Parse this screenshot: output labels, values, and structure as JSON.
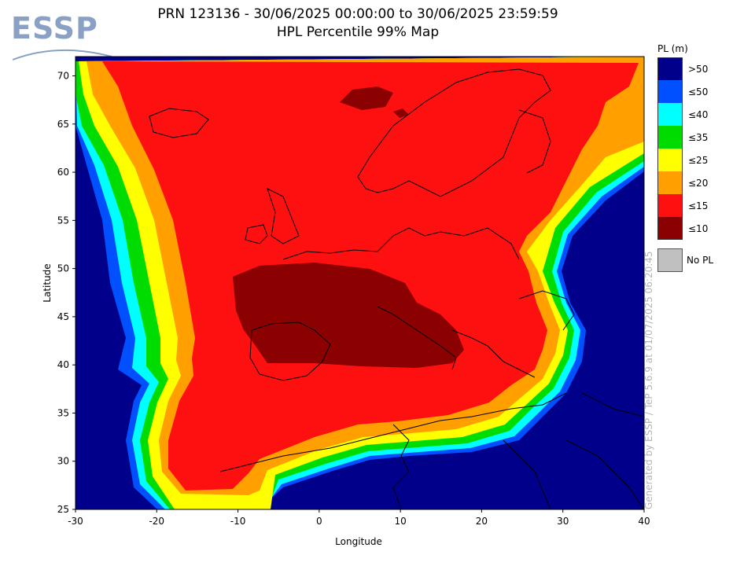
{
  "logo": {
    "text": "ESSP"
  },
  "title": {
    "line1": "PRN 123136 - 30/06/2025 00:00:00 to 30/06/2025 23:59:59",
    "line2": "HPL Percentile 99% Map"
  },
  "axes": {
    "xlabel": "Longitude",
    "ylabel": "Latitude",
    "xticks": [
      "-30",
      "-20",
      "-10",
      "0",
      "10",
      "20",
      "30",
      "40"
    ],
    "yticks": [
      "25",
      "30",
      "35",
      "40",
      "45",
      "50",
      "55",
      "60",
      "65",
      "70"
    ],
    "xlim": [
      -30,
      40
    ],
    "ylim": [
      25,
      72
    ]
  },
  "legend": {
    "title": "PL (m)",
    "items": [
      {
        "label": ">50",
        "color": "#00008b"
      },
      {
        "label": "≤50",
        "color": "#0050ff"
      },
      {
        "label": "≤40",
        "color": "#00ffff"
      },
      {
        "label": "≤35",
        "color": "#00dc00"
      },
      {
        "label": "≤25",
        "color": "#ffff00"
      },
      {
        "label": "≤20",
        "color": "#ffa000"
      },
      {
        "label": "≤15",
        "color": "#ff1010"
      },
      {
        "label": "≤10",
        "color": "#8b0000"
      }
    ],
    "no_pl": {
      "label": "No PL",
      "color": "#c0c0c0"
    }
  },
  "credit": "Generated by ESSP / TeP 5.6.9 at 01/07/2025 06:20:45",
  "chart_data": {
    "type": "heatmap",
    "title": "PRN 123136 - 30/06/2025 00:00:00 to 30/06/2025 23:59:59",
    "subtitle": "HPL Percentile 99% Map",
    "xlabel": "Longitude",
    "ylabel": "Latitude",
    "xlim": [
      -30,
      40
    ],
    "ylim": [
      25,
      72
    ],
    "regions": [
      {
        "level": ">50",
        "description_area": "ocean background (west Atlantic, Middle East corner)"
      },
      {
        "level": "≤15",
        "description_area": "bulk of Europe / Atlantic central"
      },
      {
        "level": "≤10",
        "description_area": "France, Italy, Iberia north; Norwegian Sea patch"
      }
    ]
  }
}
